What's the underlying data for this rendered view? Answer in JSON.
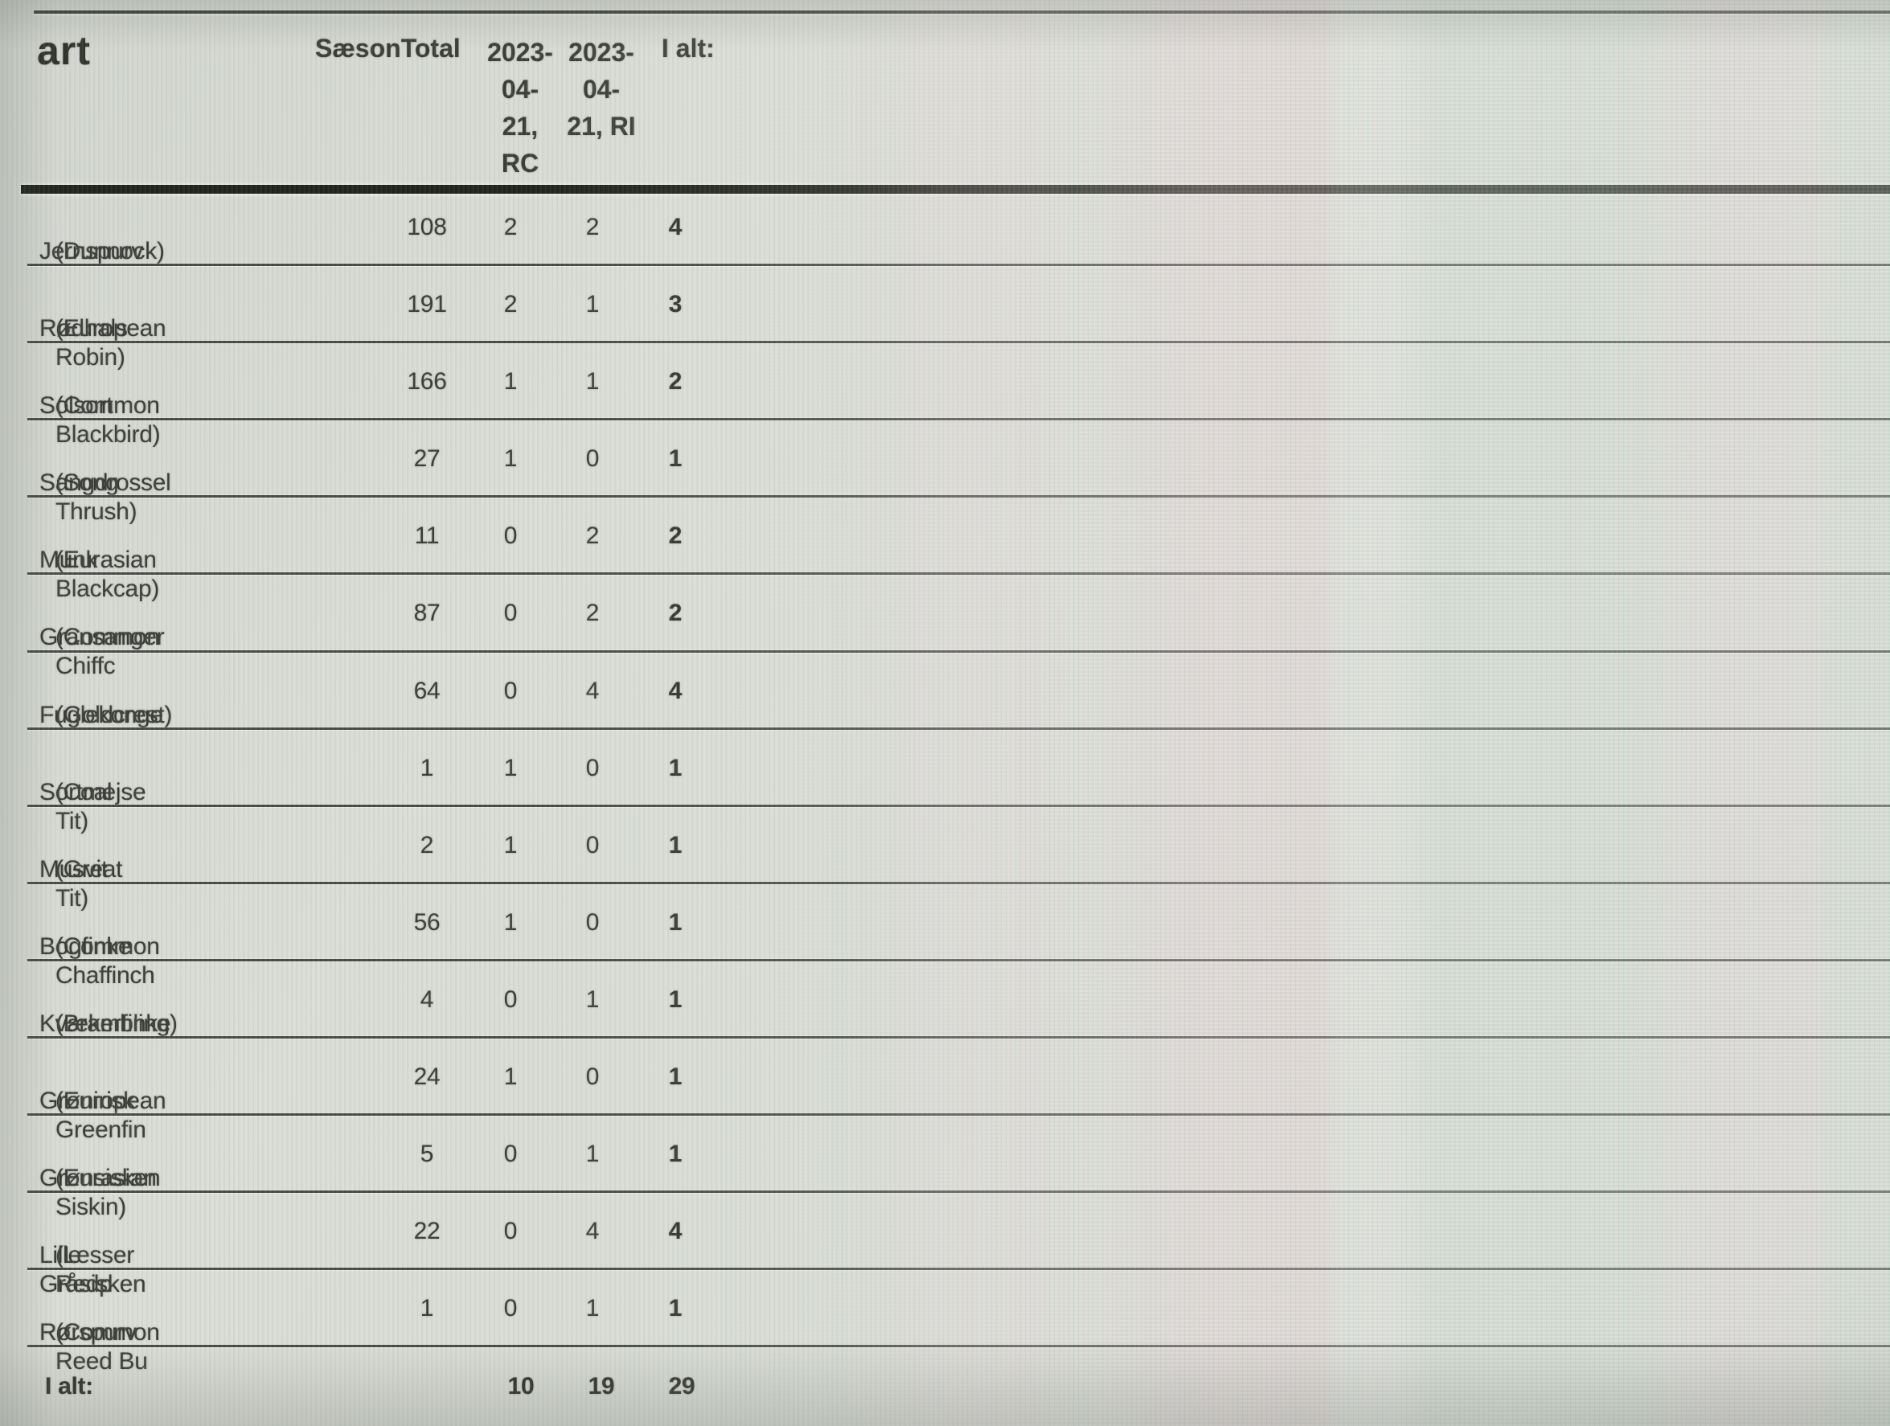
{
  "colors": {
    "background": "#d6d9d2",
    "rule_dark": "#15180f",
    "rule_mid": "#3c403a",
    "text": "#30322d"
  },
  "header": {
    "art": "art",
    "season_total": "SæsonTotal",
    "col_rc": "2023-\n04-\n21,\nRC",
    "col_ri": "2023-\n04-\n21, RI",
    "col_total": "I alt:"
  },
  "rows": [
    {
      "art_da": "Jernspurv",
      "art_en": "(Dunnock)",
      "season": "108",
      "rc": "2",
      "ri": "2",
      "total": "4"
    },
    {
      "art_da": "Rødhals",
      "art_en": "(European Robin)",
      "season": "191",
      "rc": "2",
      "ri": "1",
      "total": "3"
    },
    {
      "art_da": "Solsort",
      "art_en": "(Common Blackbird)",
      "season": "166",
      "rc": "1",
      "ri": "1",
      "total": "2"
    },
    {
      "art_da": "Sangdrossel",
      "art_en": "(Song Thrush)",
      "season": "27",
      "rc": "1",
      "ri": "0",
      "total": "1"
    },
    {
      "art_da": "Munk",
      "art_en": "(Eurasian Blackcap)",
      "season": "11",
      "rc": "0",
      "ri": "2",
      "total": "2"
    },
    {
      "art_da": "Gransanger",
      "art_en": "(Common Chiffc",
      "season": "87",
      "rc": "0",
      "ri": "2",
      "total": "2"
    },
    {
      "art_da": "Fuglekonge",
      "art_en": "(Goldcrest)",
      "season": "64",
      "rc": "0",
      "ri": "4",
      "total": "4"
    },
    {
      "art_da": "Sortmejse",
      "art_en": "(Coal Tit)",
      "season": "1",
      "rc": "1",
      "ri": "0",
      "total": "1"
    },
    {
      "art_da": "Musvit",
      "art_en": "(Great Tit)",
      "season": "2",
      "rc": "1",
      "ri": "0",
      "total": "1"
    },
    {
      "art_da": "Bogfinke",
      "art_en": "(Common Chaffinch",
      "season": "56",
      "rc": "1",
      "ri": "0",
      "total": "1"
    },
    {
      "art_da": "Kvækerfinke",
      "art_en": "(Brambling)",
      "season": "4",
      "rc": "0",
      "ri": "1",
      "total": "1"
    },
    {
      "art_da": "Grønirisk",
      "art_en": "(European Greenfin",
      "season": "24",
      "rc": "1",
      "ri": "0",
      "total": "1"
    },
    {
      "art_da": "Grønsisken",
      "art_en": "(Eurasian Siskin)",
      "season": "5",
      "rc": "0",
      "ri": "1",
      "total": "1"
    },
    {
      "art_da": "Lille Gråsisken",
      "art_en": "(Lesser Redp",
      "season": "22",
      "rc": "0",
      "ri": "4",
      "total": "4"
    },
    {
      "art_da": "Rørspurv",
      "art_en": "(Common Reed Bu",
      "season": "1",
      "rc": "0",
      "ri": "1",
      "total": "1"
    }
  ],
  "footer": {
    "label": "I alt:",
    "rc": "10",
    "ri": "19",
    "total": "29"
  }
}
